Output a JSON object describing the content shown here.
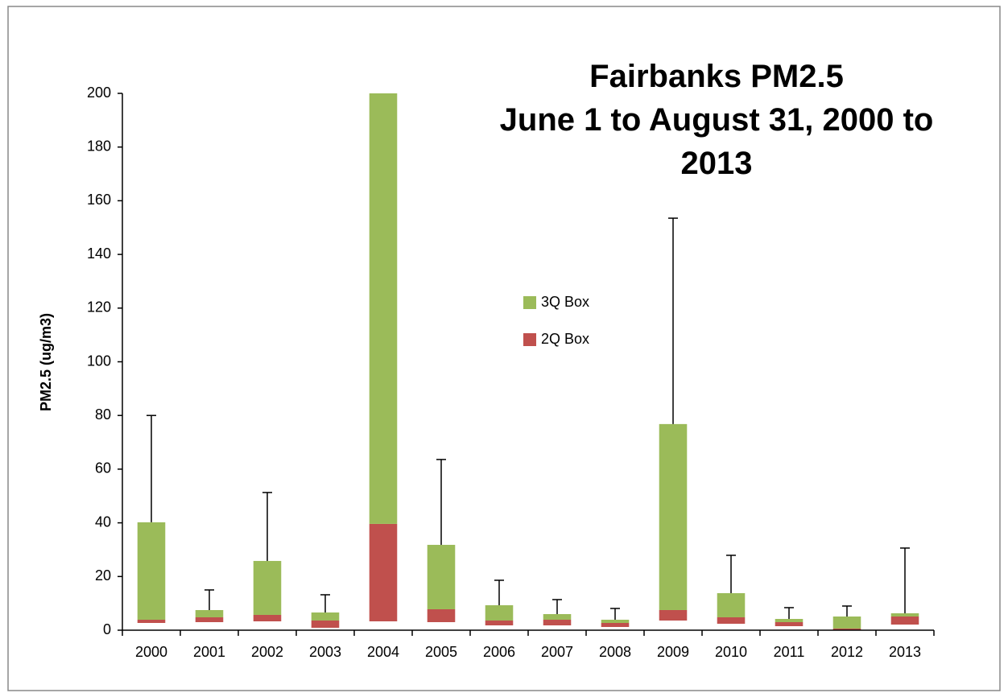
{
  "chart_data": {
    "type": "box",
    "title": "Fairbanks PM2.5",
    "subtitle": "June 1 to August 31, 2000 to 2013",
    "y_label": "PM2.5 (ug/m3)",
    "categories": [
      "2000",
      "2001",
      "2002",
      "2003",
      "2004",
      "2005",
      "2006",
      "2007",
      "2008",
      "2009",
      "2010",
      "2011",
      "2012",
      "2013"
    ],
    "base": [
      2.7,
      3.0,
      3.3,
      0.9,
      3.3,
      3.0,
      1.8,
      1.8,
      1.2,
      3.6,
      2.4,
      1.5,
      0,
      2.1
    ],
    "series": [
      {
        "name": "2Q Box",
        "color": "#c0504d",
        "values": [
          1.2,
          1.8,
          2.4,
          2.7,
          36.3,
          4.8,
          1.8,
          2.1,
          1.5,
          3.9,
          2.4,
          1.5,
          0.6,
          3.0
        ]
      },
      {
        "name": "3Q Box",
        "color": "#9bbb59",
        "values": [
          36.3,
          2.7,
          20.1,
          3.0,
          160.4,
          24.0,
          5.7,
          2.1,
          1.2,
          69.3,
          9.0,
          1.2,
          4.5,
          1.2
        ]
      }
    ],
    "whisker": [
      39.8,
      7.5,
      25.5,
      6.6,
      null,
      31.8,
      9.3,
      5.4,
      4.2,
      76.7,
      14.1,
      4.2,
      3.9,
      24.3
    ],
    "ylim": [
      0,
      200
    ],
    "yticks": [
      0,
      20,
      40,
      60,
      80,
      100,
      120,
      140,
      160,
      180,
      200
    ],
    "grid": false,
    "legend": "center"
  }
}
